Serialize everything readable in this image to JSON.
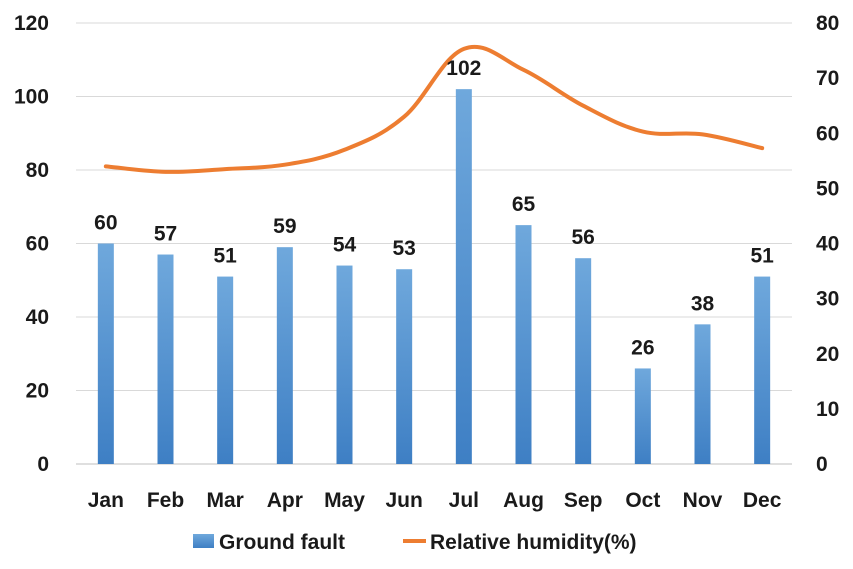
{
  "chart_data": {
    "type": "bar",
    "categories": [
      "Jan",
      "Feb",
      "Mar",
      "Apr",
      "May",
      "Jun",
      "Jul",
      "Aug",
      "Sep",
      "Oct",
      "Nov",
      "Dec"
    ],
    "series": [
      {
        "name": "Ground fault",
        "type": "bar",
        "axis": "left",
        "values": [
          60,
          57,
          51,
          59,
          54,
          53,
          102,
          65,
          56,
          26,
          38,
          51
        ],
        "data_labels": [
          "60",
          "57",
          "51",
          "59",
          "54",
          "53",
          "102",
          "65",
          "56",
          "26",
          "38",
          "51"
        ],
        "color": "#5B9BD5"
      },
      {
        "name": "Relative humidity(%)",
        "type": "line",
        "axis": "right",
        "values": [
          54,
          53,
          53.5,
          54.3,
          57,
          63,
          75.3,
          71.5,
          65,
          60.3,
          59.8,
          57.3
        ],
        "color": "#ED7D31"
      }
    ],
    "y_left": {
      "min": 0,
      "max": 120,
      "ticks": [
        "0",
        "20",
        "40",
        "60",
        "80",
        "100",
        "120"
      ]
    },
    "y_right": {
      "min": 0,
      "max": 80,
      "ticks": [
        "0",
        "10",
        "20",
        "30",
        "40",
        "50",
        "60",
        "70",
        "80"
      ]
    },
    "grid": true,
    "legend_position": "bottom"
  }
}
